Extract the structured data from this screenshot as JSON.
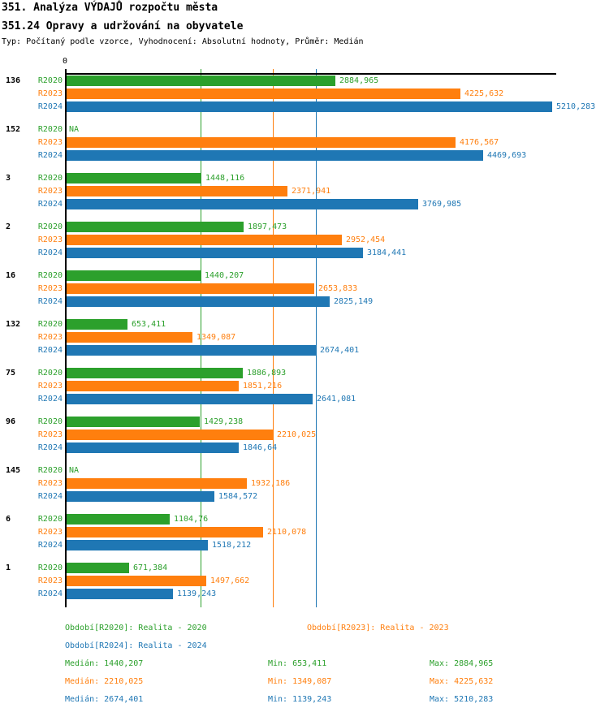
{
  "title": "351. Analýza VÝDAJŮ rozpočtu města",
  "subtitle": "351.24 Opravy a udržování na obyvatele",
  "type_line": "Typ: Počítaný podle vzorce, Vyhodnocení: Absolutní hodnoty, Průměr: Medián",
  "axis": {
    "zero_label": "0"
  },
  "colors": {
    "R2020": "#2ca02c",
    "R2023": "#ff7f0e",
    "R2024": "#1f77b4",
    "axis": "#000000"
  },
  "chart_data": {
    "type": "bar",
    "orientation": "horizontal",
    "series_names": [
      "R2020",
      "R2023",
      "R2024"
    ],
    "xlim": [
      0,
      5252
    ],
    "grid": "median-lines-only",
    "legend_position": "bottom",
    "median_gridlines": [
      {
        "series": "R2020",
        "value": 1440.207,
        "color": "#2ca02c"
      },
      {
        "series": "R2023",
        "value": 2210.025,
        "color": "#ff7f0e"
      },
      {
        "series": "R2024",
        "value": 2674.401,
        "color": "#1f77b4"
      }
    ],
    "groups": [
      {
        "label": "136",
        "bars": [
          {
            "series": "R2020",
            "value": 2884.965,
            "text": "2884,965"
          },
          {
            "series": "R2023",
            "value": 4225.632,
            "text": "4225,632"
          },
          {
            "series": "R2024",
            "value": 5210.283,
            "text": "5210,283"
          }
        ]
      },
      {
        "label": "152",
        "bars": [
          {
            "series": "R2020",
            "value": null,
            "text": "NA"
          },
          {
            "series": "R2023",
            "value": 4176.567,
            "text": "4176,567"
          },
          {
            "series": "R2024",
            "value": 4469.693,
            "text": "4469,693"
          }
        ]
      },
      {
        "label": "3",
        "bars": [
          {
            "series": "R2020",
            "value": 1448.116,
            "text": "1448,116"
          },
          {
            "series": "R2023",
            "value": 2371.941,
            "text": "2371,941"
          },
          {
            "series": "R2024",
            "value": 3769.985,
            "text": "3769,985"
          }
        ]
      },
      {
        "label": "2",
        "bars": [
          {
            "series": "R2020",
            "value": 1897.473,
            "text": "1897,473"
          },
          {
            "series": "R2023",
            "value": 2952.454,
            "text": "2952,454"
          },
          {
            "series": "R2024",
            "value": 3184.441,
            "text": "3184,441"
          }
        ]
      },
      {
        "label": "16",
        "bars": [
          {
            "series": "R2020",
            "value": 1440.207,
            "text": "1440,207"
          },
          {
            "series": "R2023",
            "value": 2653.833,
            "text": "2653,833"
          },
          {
            "series": "R2024",
            "value": 2825.149,
            "text": "2825,149"
          }
        ]
      },
      {
        "label": "132",
        "bars": [
          {
            "series": "R2020",
            "value": 653.411,
            "text": "653,411"
          },
          {
            "series": "R2023",
            "value": 1349.087,
            "text": "1349,087"
          },
          {
            "series": "R2024",
            "value": 2674.401,
            "text": "2674,401"
          }
        ]
      },
      {
        "label": "75",
        "bars": [
          {
            "series": "R2020",
            "value": 1886.893,
            "text": "1886,893"
          },
          {
            "series": "R2023",
            "value": 1851.216,
            "text": "1851,216"
          },
          {
            "series": "R2024",
            "value": 2641.081,
            "text": "2641,081"
          }
        ]
      },
      {
        "label": "96",
        "bars": [
          {
            "series": "R2020",
            "value": 1429.238,
            "text": "1429,238"
          },
          {
            "series": "R2023",
            "value": 2210.025,
            "text": "2210,025"
          },
          {
            "series": "R2024",
            "value": 1846.64,
            "text": "1846,64"
          }
        ]
      },
      {
        "label": "145",
        "bars": [
          {
            "series": "R2020",
            "value": null,
            "text": "NA"
          },
          {
            "series": "R2023",
            "value": 1932.186,
            "text": "1932,186"
          },
          {
            "series": "R2024",
            "value": 1584.572,
            "text": "1584,572"
          }
        ]
      },
      {
        "label": "6",
        "bars": [
          {
            "series": "R2020",
            "value": 1104.76,
            "text": "1104,76"
          },
          {
            "series": "R2023",
            "value": 2110.078,
            "text": "2110,078"
          },
          {
            "series": "R2024",
            "value": 1518.212,
            "text": "1518,212"
          }
        ]
      },
      {
        "label": "1",
        "bars": [
          {
            "series": "R2020",
            "value": 671.384,
            "text": "671,384"
          },
          {
            "series": "R2023",
            "value": 1497.662,
            "text": "1497,662"
          },
          {
            "series": "R2024",
            "value": 1139.243,
            "text": "1139,243"
          }
        ]
      }
    ]
  },
  "legend": [
    {
      "label": "Období[R2020]: Realita - 2020",
      "color": "#2ca02c"
    },
    {
      "label": "Období[R2023]: Realita - 2023",
      "color": "#ff7f0e"
    },
    {
      "label": "Období[R2024]: Realita - 2024",
      "color": "#1f77b4"
    }
  ],
  "stats": [
    {
      "median": "Medián: 1440,207",
      "min": "Min: 653,411",
      "max": "Max: 2884,965",
      "color": "#2ca02c"
    },
    {
      "median": "Medián: 2210,025",
      "min": "Min: 1349,087",
      "max": "Max: 4225,632",
      "color": "#ff7f0e"
    },
    {
      "median": "Medián: 2674,401",
      "min": "Min: 1139,243",
      "max": "Max: 5210,283",
      "color": "#1f77b4"
    }
  ]
}
